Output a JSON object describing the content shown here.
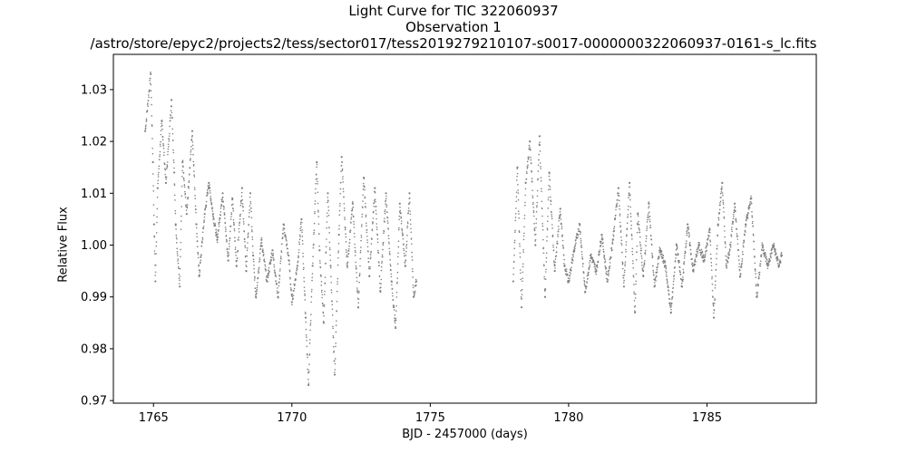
{
  "chart_data": {
    "type": "scatter",
    "title_lines": [
      "Light Curve for TIC 322060937",
      "Observation 1",
      "/astro/store/epyc2/projects2/tess/sector017/tess2019279210107-s0017-0000000322060937-0161-s_lc.fits"
    ],
    "xlabel": "BJD - 2457000 (days)",
    "ylabel": "Relative Flux",
    "xlim": [
      1763.55,
      1788.95
    ],
    "ylim": [
      0.9695,
      1.0368
    ],
    "xticks": [
      1765,
      1770,
      1775,
      1780,
      1785
    ],
    "yticks": [
      0.97,
      0.98,
      0.99,
      1.0,
      1.01,
      1.02,
      1.03
    ],
    "ytick_labels": [
      "0.97",
      "0.98",
      "0.99",
      "1.00",
      "1.01",
      "1.02",
      "1.03"
    ],
    "grid": false,
    "marker_color": "#808080",
    "series": [
      {
        "x": [
          1764.7,
          1764.9,
          1764.98,
          1765.02,
          1765.07,
          1765.15,
          1765.3,
          1765.45,
          1765.65,
          1765.75,
          1765.8,
          1765.95,
          1766.05,
          1766.2,
          1766.4,
          1766.55,
          1766.65,
          1766.85,
          1767.0,
          1767.15,
          1767.3,
          1767.5,
          1767.7,
          1767.85,
          1768.0,
          1768.2,
          1768.35,
          1768.5,
          1768.6,
          1768.7,
          1768.9,
          1769.1,
          1769.3,
          1769.5,
          1769.7,
          1769.9,
          1770.0,
          1770.2,
          1770.35,
          1770.5,
          1770.6,
          1770.75,
          1770.9,
          1771.0,
          1771.15,
          1771.3,
          1771.4,
          1771.55,
          1771.7,
          1771.8,
          1772.0,
          1772.2,
          1772.4,
          1772.6,
          1772.8,
          1773.0,
          1773.2,
          1773.4,
          1773.6,
          1773.75,
          1773.9,
          1774.1,
          1774.25,
          1774.4,
          1774.5,
          1778.0,
          1778.15,
          1778.3,
          1778.45,
          1778.6,
          1778.8,
          1778.95,
          1779.15,
          1779.3,
          1779.5,
          1779.7,
          1779.85,
          1780.0,
          1780.2,
          1780.4,
          1780.6,
          1780.8,
          1781.0,
          1781.2,
          1781.4,
          1781.6,
          1781.8,
          1782.0,
          1782.2,
          1782.4,
          1782.5,
          1782.7,
          1782.9,
          1783.1,
          1783.3,
          1783.5,
          1783.7,
          1783.9,
          1784.1,
          1784.3,
          1784.5,
          1784.7,
          1784.9,
          1785.1,
          1785.25,
          1785.4,
          1785.55,
          1785.7,
          1785.85,
          1786.0,
          1786.2,
          1786.4,
          1786.6,
          1786.8,
          1787.0,
          1787.2,
          1787.4,
          1787.6,
          1787.7
        ],
        "y": [
          1.022,
          1.033,
          1.016,
          1.004,
          0.993,
          1.011,
          1.024,
          1.012,
          1.028,
          1.014,
          1.004,
          0.992,
          1.016,
          1.006,
          1.022,
          1.004,
          0.994,
          1.006,
          1.012,
          1.006,
          1.001,
          1.01,
          0.997,
          1.009,
          0.996,
          1.011,
          0.995,
          1.01,
          0.998,
          0.99,
          1.001,
          0.993,
          0.999,
          0.99,
          1.004,
          0.997,
          0.989,
          0.996,
          1.005,
          0.986,
          0.973,
          0.996,
          1.016,
          0.999,
          0.985,
          1.01,
          0.996,
          0.975,
          1.002,
          1.017,
          0.996,
          1.008,
          0.988,
          1.013,
          0.994,
          1.011,
          0.991,
          1.01,
          0.993,
          0.984,
          1.008,
          0.996,
          1.01,
          0.99,
          0.993,
          0.993,
          1.015,
          0.988,
          1.012,
          1.02,
          1.0,
          1.021,
          0.99,
          1.014,
          0.995,
          1.007,
          0.996,
          0.993,
          0.999,
          1.004,
          0.991,
          0.998,
          0.995,
          1.002,
          0.993,
          1.001,
          1.011,
          0.992,
          1.012,
          0.987,
          1.006,
          0.994,
          1.008,
          0.992,
          0.999,
          0.996,
          0.987,
          1.0,
          0.992,
          1.004,
          0.995,
          1.0,
          0.997,
          1.003,
          0.986,
          1.004,
          1.012,
          0.996,
          1.0,
          1.008,
          0.994,
          1.004,
          1.009,
          0.99,
          1.0,
          0.996,
          1.0,
          0.996,
          0.998
        ]
      }
    ]
  }
}
